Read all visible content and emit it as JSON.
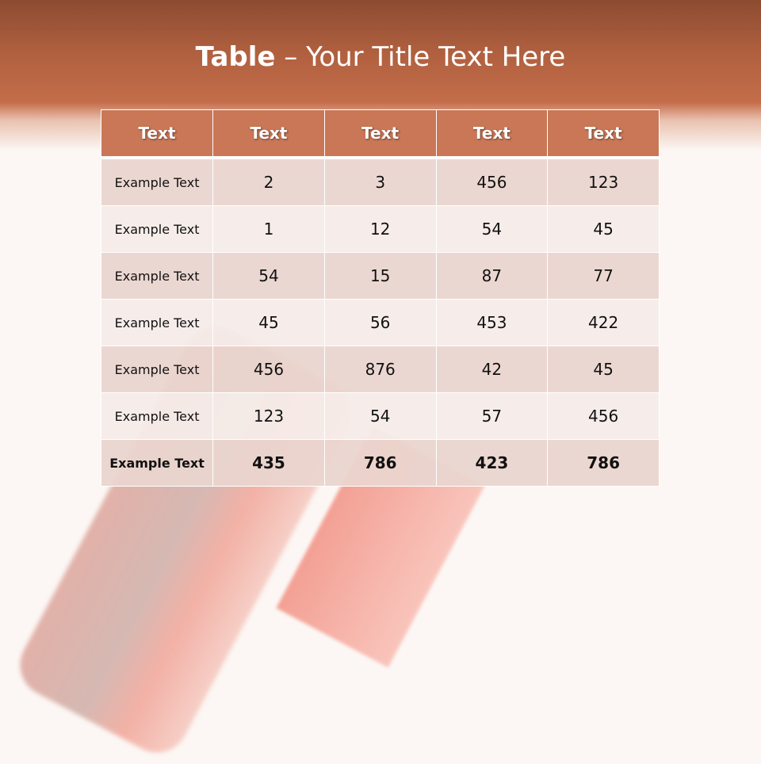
{
  "title": {
    "bold": "Table",
    "rest": " – Your Title Text Here"
  },
  "table": {
    "headers": [
      "Text",
      "Text",
      "Text",
      "Text",
      "Text"
    ],
    "rows": [
      [
        "Example Text",
        "2",
        "3",
        "456",
        "123"
      ],
      [
        "Example Text",
        "1",
        "12",
        "54",
        "45"
      ],
      [
        "Example Text",
        "54",
        "15",
        "87",
        "77"
      ],
      [
        "Example Text",
        "45",
        "56",
        "453",
        "422"
      ],
      [
        "Example Text",
        "456",
        "876",
        "42",
        "45"
      ],
      [
        "Example Text",
        "123",
        "54",
        "57",
        "456"
      ],
      [
        "Example Text",
        "435",
        "786",
        "423",
        "786"
      ]
    ]
  },
  "colors": {
    "header": "#c97757",
    "band": "#b0603f"
  }
}
